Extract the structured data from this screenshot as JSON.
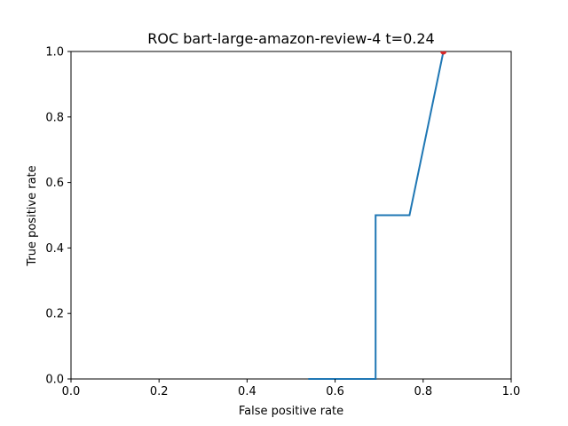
{
  "chart_data": {
    "type": "line",
    "title": "ROC bart-large-amazon-review-4 t=0.24",
    "xlabel": "False positive rate",
    "ylabel": "True positive rate",
    "xlim": [
      0.0,
      1.0
    ],
    "ylim": [
      0.0,
      1.0
    ],
    "xticks": [
      "0.0",
      "0.2",
      "0.4",
      "0.6",
      "0.8",
      "1.0"
    ],
    "yticks": [
      "0.0",
      "0.2",
      "0.4",
      "0.6",
      "0.8",
      "1.0"
    ],
    "grid": false,
    "series": [
      {
        "color": "#1f77b4",
        "x": [
          0.539,
          0.692,
          0.692,
          0.769,
          0.846
        ],
        "y": [
          0.0,
          0.0,
          0.5,
          0.5,
          1.0
        ]
      }
    ],
    "marker": {
      "x": 0.846,
      "y": 1.0,
      "color": "#d62728"
    }
  }
}
